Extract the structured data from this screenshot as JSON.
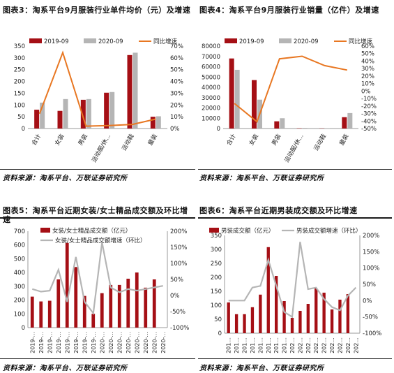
{
  "colors": {
    "bar2019": "#a50f15",
    "bar2020": "#b5b5b5",
    "growth": "#e87722",
    "bar": "#a50f15",
    "line": "#b5b5b5"
  },
  "chart3": {
    "title": "图表3：淘系平台9月服装行业单件均价（元）及增速",
    "source": "资料来源：淘系平台、万联证券研究所",
    "chart_data": {
      "type": "bar",
      "categories": [
        "合计",
        "女装",
        "男装",
        "运动服/休...",
        "运动鞋",
        "童装"
      ],
      "series": [
        {
          "name": "2019-09",
          "values": [
            80,
            75,
            122,
            152,
            312,
            50
          ]
        },
        {
          "name": "2020-09",
          "values": [
            110,
            125,
            125,
            155,
            322,
            52
          ]
        },
        {
          "name": "同比增速",
          "axis": "right",
          "values": [
            0.125,
            0.645,
            0.02,
            0.025,
            0.035,
            0.08
          ]
        }
      ],
      "left_axis": {
        "ticks": [
          "0",
          "50",
          "100",
          "150",
          "200",
          "250",
          "300",
          "350"
        ],
        "ylim": [
          0,
          350
        ]
      },
      "right_axis": {
        "ticks": [
          "0%",
          "10%",
          "20%",
          "30%",
          "40%",
          "50%",
          "60%",
          "70%"
        ],
        "ylim": [
          0,
          0.7
        ]
      },
      "legend": "top"
    }
  },
  "chart4": {
    "title": "图表4：淘系平台9月服装行业销量（亿件）及增速",
    "source": "资料来源：淘系平台、万联证券研究所",
    "chart_data": {
      "type": "bar",
      "categories": [
        "合计",
        "女装",
        "男装",
        "运动服/休...",
        "运动鞋",
        "童装"
      ],
      "series": [
        {
          "name": "2019-09",
          "values": [
            68000,
            47000,
            7000,
            300,
            200,
            11000
          ]
        },
        {
          "name": "2020-09",
          "values": [
            57000,
            28000,
            10000,
            600,
            400,
            15000
          ]
        },
        {
          "name": "同比增速",
          "axis": "right",
          "values": [
            -0.165,
            -0.41,
            0.43,
            0.465,
            0.34,
            0.28
          ]
        }
      ],
      "left_axis": {
        "ticks": [
          "0",
          "10000",
          "20000",
          "30000",
          "40000",
          "50000",
          "60000",
          "70000",
          "80000"
        ],
        "ylim": [
          0,
          80000
        ]
      },
      "right_axis": {
        "ticks": [
          "-50%",
          "-40%",
          "-30%",
          "-20%",
          "-10%",
          "0%",
          "10%",
          "20%",
          "30%",
          "40%",
          "50%",
          "60%"
        ],
        "ylim": [
          -0.5,
          0.6
        ]
      },
      "legend": "top"
    }
  },
  "chart5": {
    "title": "图表5：淘系平台近期女装/女士精品成交额及环比增速",
    "source": "资料来源：淘系平台、万联证券研究所",
    "chart_data": {
      "type": "bar",
      "x_labels": [
        "2019-...",
        "2019-...",
        "2019-...",
        "2019-...",
        "2019-...",
        "2019-...",
        "2019-...",
        "2019-...",
        "2020-...",
        "2020-...",
        "2020-...",
        "2020-...",
        "2020-...",
        "2020-...",
        "2020-...",
        "2020-..."
      ],
      "series": [
        {
          "name": "女装/女士精品成交额（亿元）",
          "values": [
            225,
            190,
            195,
            350,
            615,
            440,
            230,
            100,
            250,
            310,
            310,
            355,
            400,
            290,
            350,
            0
          ]
        },
        {
          "name": "女装/女士精品成交额增速（环比）",
          "axis": "right",
          "values": [
            0.2,
            0.12,
            0.15,
            0.8,
            -0.2,
            1.2,
            -0.2,
            -0.55,
            1.65,
            0.25,
            0.1,
            0.2,
            0.15,
            0.2,
            0.25,
            0.3
          ]
        }
      ],
      "left_axis": {
        "ticks": [
          "0",
          "100",
          "200",
          "300",
          "400",
          "500",
          "600",
          "700"
        ],
        "ylim": [
          0,
          700
        ]
      },
      "right_axis": {
        "ticks": [
          "-100%",
          "-50%",
          "0%",
          "50%",
          "100%",
          "150%",
          "200%"
        ],
        "ylim": [
          -1,
          2
        ]
      },
      "legend": "top"
    }
  },
  "chart6": {
    "title": "图表6：淘系平台近期男装成交额及环比增速",
    "source": "资料来源：淘系平台、万联证券研究所",
    "chart_data": {
      "type": "bar",
      "x_labels": [
        "201...",
        "201...",
        "201...",
        "201...",
        "201...",
        "201...",
        "201...",
        "201...",
        "202...",
        "202...",
        "202...",
        "202...",
        "202...",
        "202...",
        "202...",
        "202...",
        "202..."
      ],
      "series": [
        {
          "name": "男装成交额（亿元）",
          "values": [
            110,
            68,
            68,
            93,
            138,
            308,
            205,
            115,
            55,
            80,
            105,
            160,
            145,
            85,
            120,
            140,
            0
          ]
        },
        {
          "name": "男装成交额增速（环比）",
          "axis": "right",
          "values": [
            0.0,
            0.0,
            0.0,
            0.4,
            0.45,
            1.25,
            0.45,
            -0.35,
            -0.5,
            1.8,
            0.35,
            0.4,
            0.05,
            -0.2,
            -0.3,
            0.15,
            0.4
          ]
        }
      ],
      "left_axis": {
        "ticks": [
          "0",
          "50",
          "100",
          "150",
          "200",
          "250",
          "300",
          "350"
        ],
        "ylim": [
          0,
          350
        ]
      },
      "right_axis": {
        "ticks": [
          "-100%",
          "-50%",
          "0%",
          "50%",
          "100%",
          "150%",
          "200%"
        ],
        "ylim": [
          -1,
          2
        ]
      },
      "legend": "top"
    }
  }
}
